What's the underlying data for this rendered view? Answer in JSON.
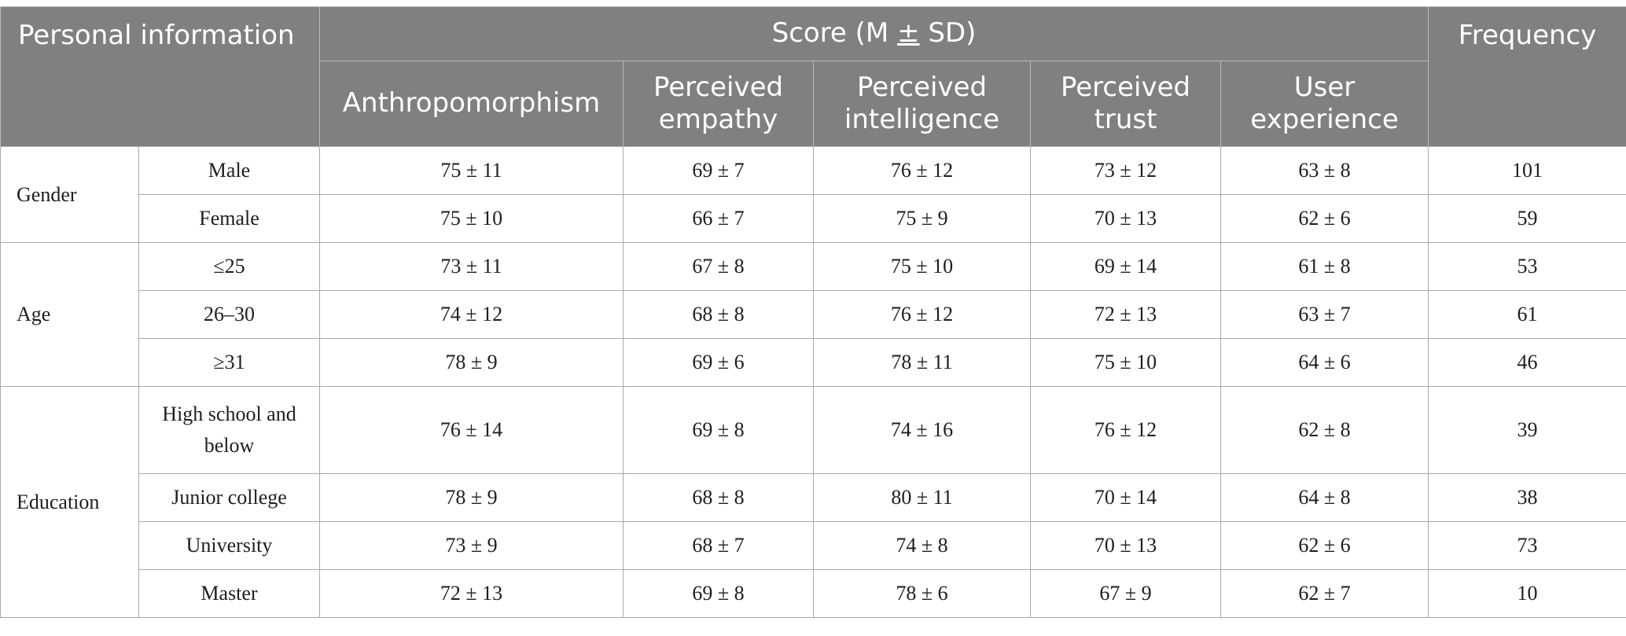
{
  "table": {
    "header": {
      "personal_information": "Personal information",
      "score_prefix": "Score (M ",
      "score_pm": "+",
      "score_suffix": " SD)",
      "frequency": "Frequency",
      "columns": [
        "Anthropomorphism",
        "Perceived empathy",
        "Perceived intelligence",
        "Perceived trust",
        "User experience"
      ]
    },
    "groups": [
      {
        "category": "Gender",
        "rows": [
          {
            "label": "Male",
            "values": [
              "75 ± 11",
              "69 ± 7",
              "76 ± 12",
              "73 ± 12",
              "63 ± 8"
            ],
            "frequency": "101"
          },
          {
            "label": "Female",
            "values": [
              "75 ± 10",
              "66 ± 7",
              "75 ± 9",
              "70 ± 13",
              "62 ± 6"
            ],
            "frequency": "59"
          }
        ]
      },
      {
        "category": "Age",
        "rows": [
          {
            "label": "≤25",
            "values": [
              "73 ± 11",
              "67 ± 8",
              "75 ± 10",
              "69 ± 14",
              "61 ± 8"
            ],
            "frequency": "53"
          },
          {
            "label": "26–30",
            "values": [
              "74 ± 12",
              "68 ± 8",
              "76 ± 12",
              "72 ± 13",
              "63 ± 7"
            ],
            "frequency": "61"
          },
          {
            "label": "≥31",
            "values": [
              "78 ± 9",
              "69 ± 6",
              "78 ± 11",
              "75 ± 10",
              "64 ± 6"
            ],
            "frequency": "46"
          }
        ]
      },
      {
        "category": "Education",
        "rows": [
          {
            "label": "High school and below",
            "values": [
              "76 ± 14",
              "69 ± 8",
              "74 ± 16",
              "76 ± 12",
              "62 ± 8"
            ],
            "frequency": "39"
          },
          {
            "label": "Junior college",
            "values": [
              "78 ± 9",
              "68 ± 8",
              "80 ± 11",
              "70 ± 14",
              "64 ± 8"
            ],
            "frequency": "38"
          },
          {
            "label": "University",
            "values": [
              "73 ± 9",
              "68 ± 7",
              "74 ± 8",
              "70 ± 13",
              "62 ± 6"
            ],
            "frequency": "73"
          },
          {
            "label": "Master",
            "values": [
              "72 ± 13",
              "69 ± 8",
              "78 ± 6",
              "67 ± 9",
              "62 ± 7"
            ],
            "frequency": "10"
          }
        ]
      }
    ]
  }
}
